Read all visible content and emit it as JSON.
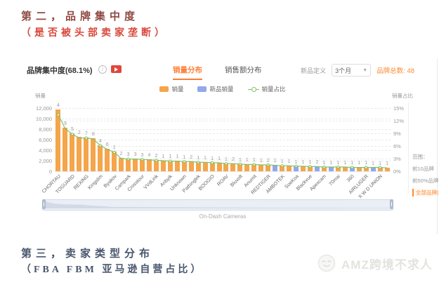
{
  "page": {
    "title_line1": "第二，品牌集中度",
    "title_line2": "（是否被头部卖家垄断）",
    "bottom_line1": "第三，卖家类型分布",
    "bottom_line2": "（FBA FBM  亚马逊自营占比）",
    "watermark": "AMZ跨境不求人"
  },
  "panel": {
    "title": "品牌集中度(68.1%)",
    "tabs": [
      {
        "label": "销量分布",
        "active": true
      },
      {
        "label": "销售额分布",
        "active": false
      }
    ],
    "new_product_label": "新品定义",
    "new_product_value": "3个月",
    "brand_total": "品牌总数: 48",
    "range": {
      "label": "范围：",
      "options": [
        {
          "label": "前10品牌",
          "active": false
        },
        {
          "label": "前50%品牌",
          "active": false
        },
        {
          "label": "全部品牌(48)",
          "active": true
        }
      ]
    }
  },
  "chart_data": {
    "type": "bar",
    "title": "品牌集中度(68.1%) 销量分布",
    "xlabel": "On-Dash Cameras",
    "ylabel_left": "销量",
    "ylabel_right": "销量占比",
    "legend": [
      "销量",
      "新品销量",
      "销量占比"
    ],
    "ylim_left": [
      0,
      12000
    ],
    "ylim_right": [
      0,
      15
    ],
    "y_left_ticks": [
      {
        "value": 12000,
        "label": "12,000"
      },
      {
        "value": 10000,
        "label": "10,000"
      },
      {
        "value": 8000,
        "label": "8,000"
      },
      {
        "value": 6000,
        "label": "6,000"
      },
      {
        "value": 4000,
        "label": "4,000"
      },
      {
        "value": 2000,
        "label": "2,000"
      },
      {
        "value": 0,
        "label": "0"
      }
    ],
    "y_right_ticks": [
      {
        "value": 15,
        "label": "15%"
      },
      {
        "value": 12,
        "label": "12%"
      },
      {
        "value": 9,
        "label": "9%"
      },
      {
        "value": 6,
        "label": "6%"
      },
      {
        "value": 3,
        "label": "3%"
      },
      {
        "value": 0,
        "label": "0%"
      }
    ],
    "categories": [
      "CHORTAU",
      "TOGUARD",
      "REXING",
      "Kingslim",
      "Byakov",
      "Campark",
      "Crosstour",
      "VVdLink",
      "Anbyik",
      "Unknown",
      "Pathinglek",
      "BOOGIO",
      "ROAV",
      "Bluvolt",
      "Anumit",
      "REDTIGER",
      "AMBOTEK",
      "SoeKoa",
      "Blackvue",
      "Apexcam",
      "70mai",
      "360",
      "AIRLUGER",
      "X W D UNION"
    ],
    "category_note": "labels shown on every second bar",
    "values": [
      11700,
      8300,
      7200,
      6500,
      6450,
      6300,
      5000,
      4300,
      3700,
      2500,
      2400,
      2350,
      2300,
      2250,
      2150,
      2050,
      2000,
      1950,
      1900,
      1850,
      1750,
      1700,
      1650,
      1600,
      1500,
      1450,
      1400,
      1350,
      1300,
      1250,
      1200,
      1150,
      1100,
      1050,
      1000,
      950,
      900,
      880,
      860,
      840,
      820,
      800,
      780,
      760,
      740,
      720,
      700,
      680
    ],
    "bar_labels": [
      "4",
      "9",
      "5",
      "2",
      "7",
      "8",
      "4",
      "6",
      "1",
      "2",
      "3",
      "3",
      "3",
      "4",
      "2",
      "1",
      "1",
      "1",
      "1",
      "2",
      "1",
      "1",
      "1",
      "1",
      "1",
      "2",
      "1",
      "1",
      "1",
      "1",
      "2",
      "1",
      "1",
      "1",
      "1",
      "1",
      "1",
      "2",
      "1",
      "1",
      "1",
      "1",
      "1",
      "1",
      "1",
      "1",
      "1",
      "1"
    ],
    "new_product_indices": [
      31,
      34,
      37,
      39,
      42,
      45
    ],
    "series": [
      {
        "name": "销量",
        "type": "bar"
      },
      {
        "name": "新品销量",
        "type": "bar"
      },
      {
        "name": "销量占比",
        "type": "line",
        "values": [
          13.4,
          10.1,
          8.8,
          7.9,
          7.9,
          7.7,
          6.1,
          5.2,
          4.5,
          3.0,
          2.9,
          2.9,
          2.8,
          2.7,
          2.6,
          2.5,
          2.4,
          2.4,
          2.3,
          2.3,
          2.1,
          2.1,
          2.0,
          2.0,
          1.8,
          1.8,
          1.7,
          1.6,
          1.6,
          1.5,
          1.5,
          1.4,
          1.3,
          1.3,
          1.2,
          1.2,
          1.1,
          1.1,
          1.0,
          1.0,
          1.0,
          1.0,
          0.9,
          0.9,
          0.9,
          0.9,
          0.9,
          0.8
        ]
      }
    ],
    "colors": {
      "bar": "#f5a54a",
      "new_bar": "#93a7ea",
      "line": "#7fc269",
      "accent": "#ff7e33"
    },
    "grid": true,
    "legend_position": "top-center"
  }
}
